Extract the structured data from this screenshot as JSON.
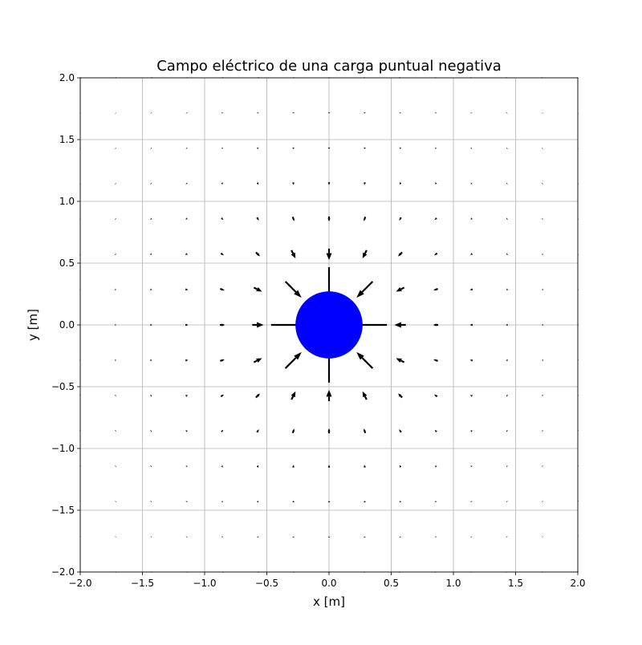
{
  "chart_data": {
    "type": "quiver",
    "title": "Campo eléctrico de una carga puntual negativa",
    "xlabel": "x [m]",
    "ylabel": "y [m]",
    "xlim": [
      -2.0,
      2.0
    ],
    "ylim": [
      -2.0,
      2.0
    ],
    "xticks": [
      "−2.0",
      "−1.5",
      "−1.0",
      "−0.5",
      "0.0",
      "0.5",
      "1.0",
      "1.5",
      "2.0"
    ],
    "yticks": [
      "−2.0",
      "−1.5",
      "−1.0",
      "−0.5",
      "0.0",
      "0.5",
      "1.0",
      "1.5",
      "2.0"
    ],
    "grid": true,
    "charge": {
      "sign": "negative",
      "x": 0.0,
      "y": 0.0,
      "radius": 0.27,
      "color": "#0000ff"
    },
    "field": {
      "direction": "toward charge",
      "x_range": [
        -2.0,
        2.0
      ],
      "y_range": [
        -2.0,
        2.0
      ],
      "points_per_axis": 15,
      "arrow_color": "#000000"
    }
  }
}
